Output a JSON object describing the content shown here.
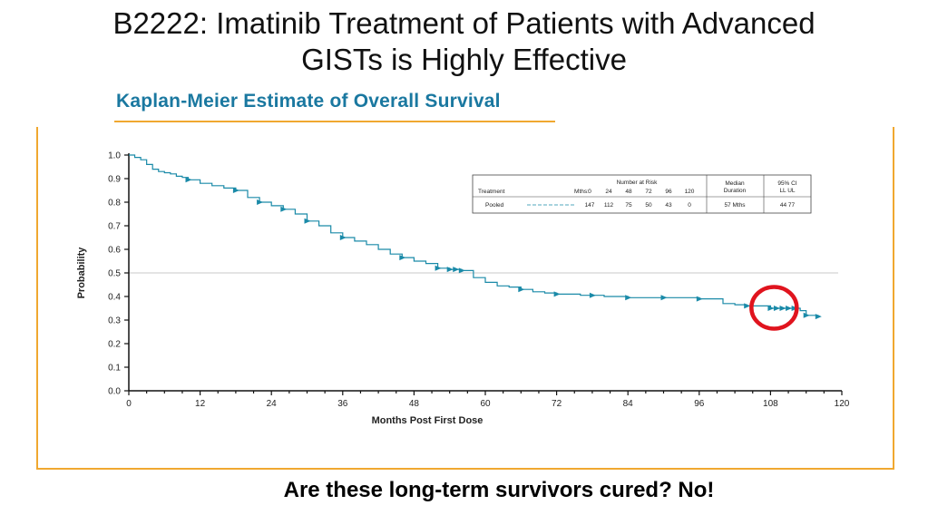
{
  "slide": {
    "title_line1": "B2222: Imatinib Treatment of Patients with Advanced",
    "title_line2": "GISTs is Highly Effective",
    "caption": "Are these long-term survivors cured? No!"
  },
  "colors": {
    "curve": "#1a8aa8",
    "frame": "#f0a830",
    "header": "#1a78a0",
    "highlight": "#e0141e",
    "reference_line": "#c8c8c8"
  },
  "chart_data": {
    "type": "line",
    "title": "Kaplan-Meier Estimate of Overall Survival",
    "xlabel": "Months Post First Dose",
    "ylabel": "Probability",
    "xlim": [
      0,
      120
    ],
    "ylim": [
      0,
      1.0
    ],
    "x_ticks": [
      "0",
      "12",
      "24",
      "36",
      "48",
      "60",
      "72",
      "84",
      "96",
      "108",
      "120"
    ],
    "y_ticks": [
      "0.0",
      "0.1",
      "0.2",
      "0.3",
      "0.4",
      "0.5",
      "0.6",
      "0.7",
      "0.8",
      "0.9",
      "1.0"
    ],
    "reference_line_y": 0.5,
    "series": [
      {
        "x": [
          0,
          1,
          2,
          3,
          4,
          5,
          6,
          7,
          8,
          9,
          10,
          12,
          14,
          16,
          18,
          20,
          22,
          24,
          26,
          28,
          30,
          32,
          34,
          36,
          38,
          40,
          42,
          44,
          46,
          48,
          50,
          52,
          54,
          56,
          58,
          60,
          62,
          64,
          66,
          68,
          70,
          72,
          76,
          80,
          84,
          88,
          92,
          96,
          100,
          102,
          104,
          106,
          108,
          110,
          112,
          113,
          114,
          116
        ],
        "y": [
          1.0,
          0.99,
          0.98,
          0.96,
          0.94,
          0.93,
          0.925,
          0.92,
          0.91,
          0.905,
          0.895,
          0.88,
          0.87,
          0.86,
          0.85,
          0.82,
          0.8,
          0.785,
          0.77,
          0.75,
          0.72,
          0.7,
          0.67,
          0.65,
          0.635,
          0.62,
          0.6,
          0.58,
          0.565,
          0.55,
          0.54,
          0.52,
          0.515,
          0.51,
          0.48,
          0.46,
          0.445,
          0.44,
          0.43,
          0.42,
          0.415,
          0.41,
          0.405,
          0.4,
          0.395,
          0.395,
          0.395,
          0.39,
          0.37,
          0.365,
          0.36,
          0.36,
          0.35,
          0.35,
          0.35,
          0.34,
          0.32,
          0.315
        ],
        "censored_x": [
          10,
          18,
          22,
          26,
          30,
          36,
          46,
          52,
          54,
          55,
          56,
          66,
          72,
          78,
          84,
          90,
          96,
          104,
          108,
          109,
          110,
          111,
          112,
          114,
          116
        ]
      }
    ],
    "risk_table": {
      "header_group": "Number at Risk",
      "treatment_header": "Treatment",
      "mths_label": "Mths:",
      "months": [
        "0",
        "24",
        "48",
        "72",
        "96",
        "120"
      ],
      "median_header": [
        "Median",
        "Duration"
      ],
      "ci_header": [
        "95% CI",
        "LL   UL"
      ],
      "row": {
        "treatment": "Pooled",
        "at_risk": [
          "147",
          "112",
          "75",
          "50",
          "43",
          "0"
        ],
        "median": "57 Mths",
        "ci": "44  77"
      }
    }
  }
}
